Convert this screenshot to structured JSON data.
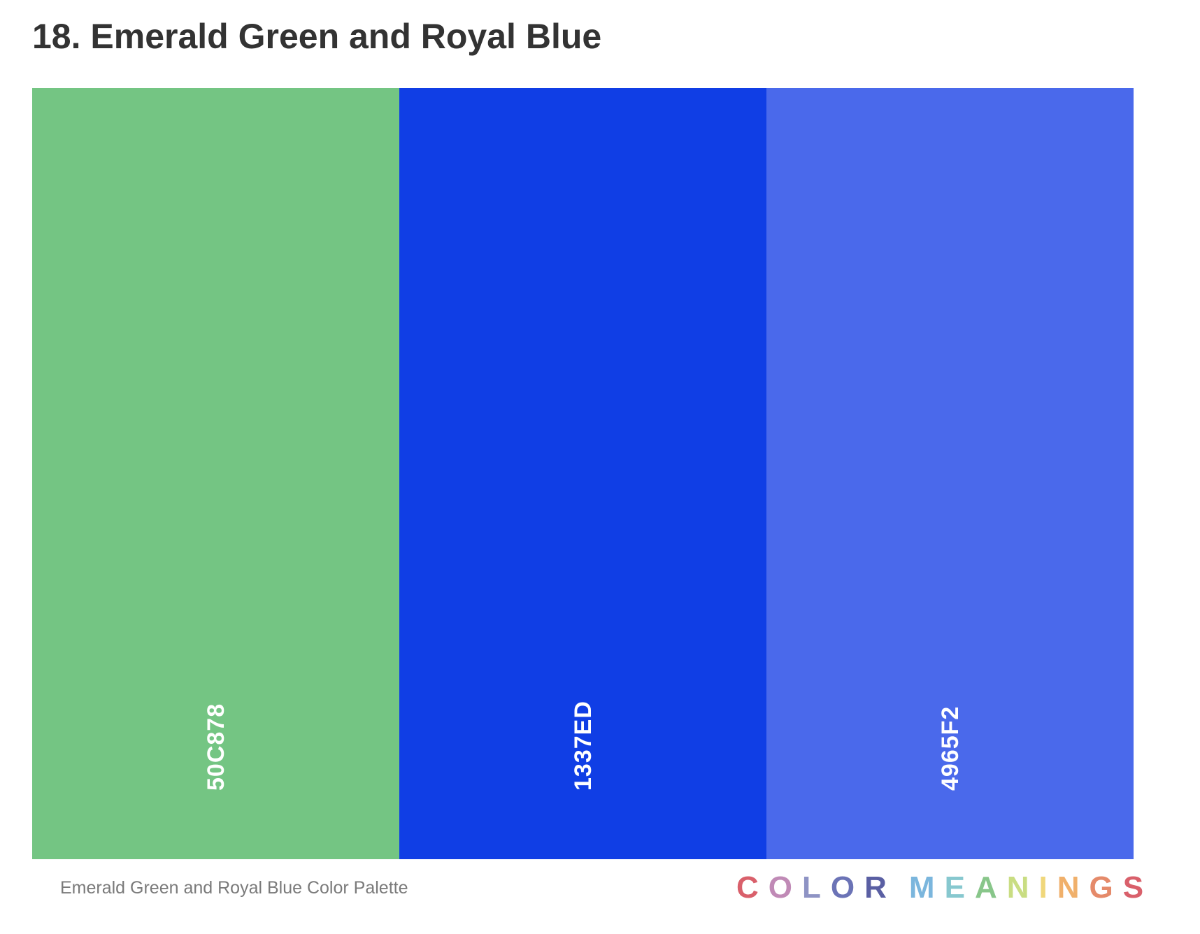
{
  "heading": "18. Emerald Green and Royal Blue",
  "palette": {
    "swatches": [
      {
        "hex": "50C878",
        "color": "#74C583"
      },
      {
        "hex": "1337ED",
        "color": "#103EE5"
      },
      {
        "hex": "4965F2",
        "color": "#4A69EB"
      }
    ]
  },
  "caption": "Emerald Green and Royal Blue Color Palette",
  "logo": {
    "words": [
      "COLOR",
      "MEANINGS"
    ],
    "letter_colors": [
      [
        "#D9606B",
        "#C08AB6",
        "#8E93C4",
        "#6B73B6",
        "#5A5FA3"
      ],
      [
        "#7BB6DD",
        "#87C8CF",
        "#88C68A",
        "#C9DD82",
        "#F0D77B",
        "#F0B06B",
        "#E58A6A",
        "#D9606B"
      ]
    ]
  }
}
